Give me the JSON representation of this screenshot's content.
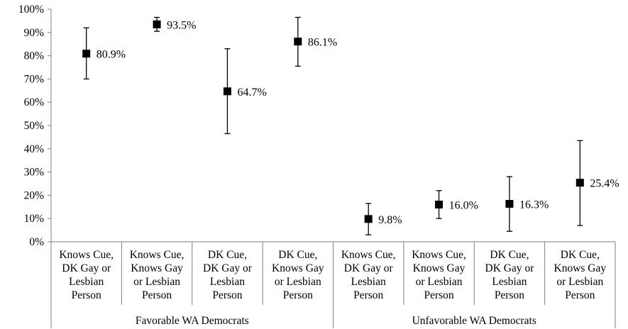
{
  "chart_data": {
    "type": "scatter",
    "title": "",
    "xlabel": "",
    "ylabel": "",
    "ylim": [
      0,
      100
    ],
    "y_ticks": [
      "0%",
      "10%",
      "20%",
      "30%",
      "40%",
      "50%",
      "60%",
      "70%",
      "80%",
      "90%",
      "100%"
    ],
    "grid": false,
    "legend": "none",
    "marker_color": "#000000",
    "error_bars": true,
    "groups": [
      {
        "label": "Favorable WA Democrats",
        "categories": [
          [
            "Knows Cue,",
            "DK Gay or",
            "Lesbian",
            "Person"
          ],
          [
            "Knows Cue,",
            "Knows Gay",
            "or Lesbian",
            "Person"
          ],
          [
            "DK Cue,",
            "DK Gay or",
            "Lesbian",
            "Person"
          ],
          [
            "DK Cue,",
            "Knows Gay",
            "or Lesbian",
            "Person"
          ]
        ]
      },
      {
        "label": "Unfavorable WA Democrats",
        "categories": [
          [
            "Knows Cue,",
            "DK Gay or",
            "Lesbian",
            "Person"
          ],
          [
            "Knows Cue,",
            "Knows Gay",
            "or Lesbian",
            "Person"
          ],
          [
            "DK Cue,",
            "DK Gay or",
            "Lesbian",
            "Person"
          ],
          [
            "DK Cue,",
            "Knows Gay",
            "or Lesbian",
            "Person"
          ]
        ]
      }
    ],
    "values": [
      80.9,
      93.5,
      64.7,
      86.1,
      9.8,
      16.0,
      16.3,
      25.4
    ],
    "data_labels": [
      "80.9%",
      "93.5%",
      "64.7%",
      "86.1%",
      "9.8%",
      "16.0%",
      "16.3%",
      "25.4%"
    ],
    "error_low": [
      70.0,
      90.5,
      46.5,
      75.5,
      3.0,
      10.0,
      4.5,
      7.0
    ],
    "error_high": [
      92.0,
      96.5,
      83.0,
      96.5,
      16.5,
      22.0,
      28.0,
      43.5
    ]
  }
}
